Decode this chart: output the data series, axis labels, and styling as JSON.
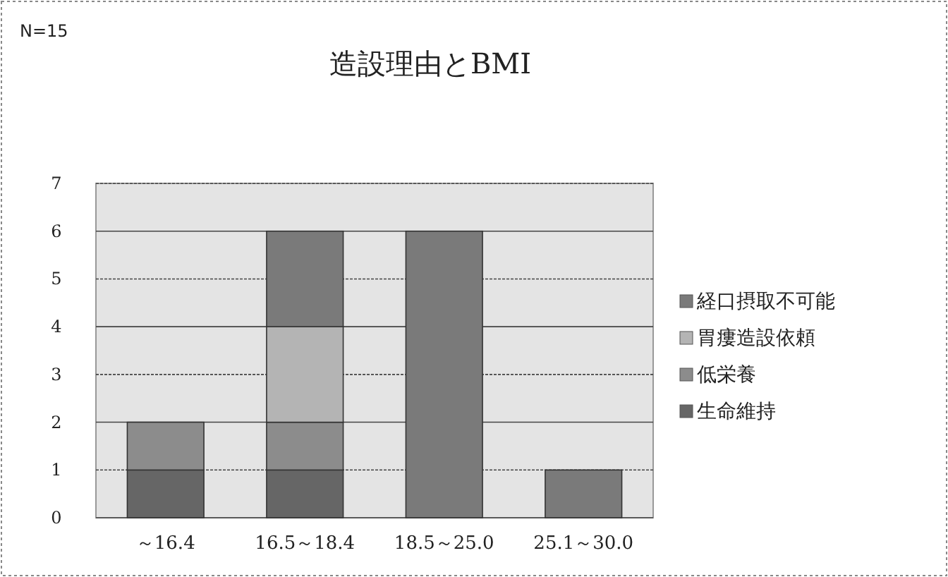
{
  "chart_data": {
    "type": "bar",
    "stacked": true,
    "title": "造設理由とBMI",
    "annotations": [
      "N=15"
    ],
    "categories": [
      "～16.4",
      "16.5～18.4",
      "18.5～25.0",
      "25.1～30.0"
    ],
    "series": [
      {
        "name": "生命維持",
        "color": "#666666",
        "values": [
          1,
          1,
          0,
          0
        ]
      },
      {
        "name": "低栄養",
        "color": "#8c8c8c",
        "values": [
          1,
          1,
          0,
          0
        ]
      },
      {
        "name": "胃瘻造設依頼",
        "color": "#b4b4b4",
        "values": [
          0,
          2,
          0,
          0
        ]
      },
      {
        "name": "経口摂取不可能",
        "color": "#7a7a7a",
        "values": [
          0,
          2,
          6,
          1
        ]
      }
    ],
    "ylim": [
      0,
      7
    ],
    "yticks": [
      0,
      1,
      2,
      3,
      4,
      5,
      6,
      7
    ],
    "grid": "y",
    "legend": "right"
  }
}
